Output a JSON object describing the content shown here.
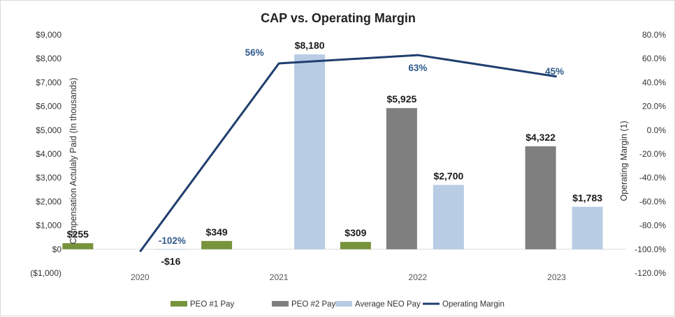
{
  "chart_data": {
    "type": "bar+line",
    "title": "CAP vs. Operating Margin",
    "categories": [
      "2020",
      "2021",
      "2022",
      "2023"
    ],
    "ylabel": "Compensation Actulaly Paid (In thousands)",
    "y2label": "Operating Margin (1)",
    "ylim": [
      -1000,
      9000
    ],
    "y_ticks": [
      -1000,
      0,
      1000,
      2000,
      3000,
      4000,
      5000,
      6000,
      7000,
      8000,
      9000
    ],
    "y_tick_labels": [
      "($1,000)",
      "$0",
      "$1,000",
      "$2,000",
      "$3,000",
      "$4,000",
      "$5,000",
      "$6,000",
      "$7,000",
      "$8,000",
      "$9,000"
    ],
    "y2lim": [
      -120,
      80
    ],
    "y2_ticks": [
      -120,
      -100,
      -80,
      -60,
      -40,
      -20,
      0,
      20,
      40,
      60,
      80
    ],
    "y2_tick_labels": [
      "-120.0%",
      "-100.0%",
      "-80.0%",
      "-60.0%",
      "-40.0%",
      "-20.0%",
      "0.0%",
      "20.0%",
      "40.0%",
      "60.0%",
      "80.0%"
    ],
    "series": [
      {
        "name": "PEO #1 Pay",
        "type": "bar",
        "color": "#77933c",
        "values": [
          255,
          349,
          309,
          null
        ],
        "labels": [
          "$255",
          "$349",
          "$309",
          ""
        ]
      },
      {
        "name": "PEO #2 Pay",
        "type": "bar",
        "color": "#7f7f7f",
        "values": [
          null,
          null,
          5925,
          4322
        ],
        "labels": [
          "",
          "",
          "$5,925",
          "$4,322"
        ]
      },
      {
        "name": "Average NEO Pay",
        "type": "bar",
        "color": "#b8cce4",
        "values": [
          -16,
          8180,
          2700,
          1783
        ],
        "labels": [
          "-$16",
          "$8,180",
          "$2,700",
          "$1,783"
        ]
      },
      {
        "name": "Operating Margin",
        "type": "line",
        "axis": "secondary",
        "color": "#1f3e6e",
        "values": [
          -102,
          56,
          63,
          45
        ],
        "labels": [
          "-102%",
          "56%",
          "63%",
          "45%"
        ]
      }
    ],
    "legend_position": "bottom"
  }
}
